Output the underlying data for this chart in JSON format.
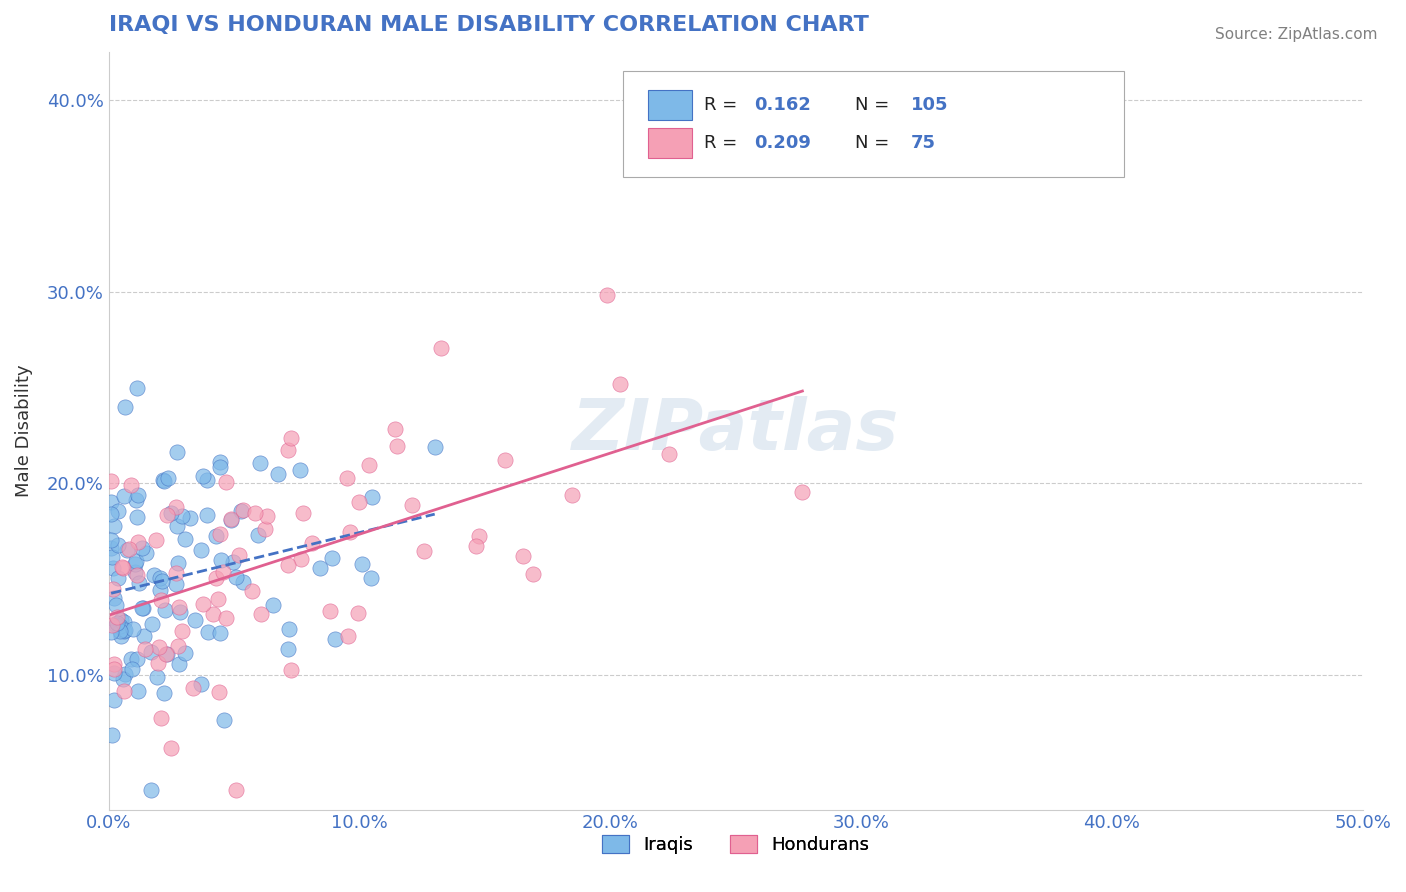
{
  "title": "IRAQI VS HONDURAN MALE DISABILITY CORRELATION CHART",
  "source": "Source: ZipAtlas.com",
  "xlabel_bottom": "",
  "ylabel": "Male Disability",
  "legend_bottom": [
    "Iraqis",
    "Hondurans"
  ],
  "iraqi_R": 0.162,
  "iraqi_N": 105,
  "honduran_R": 0.209,
  "honduran_N": 75,
  "xlim": [
    0.0,
    0.5
  ],
  "ylim": [
    0.03,
    0.42
  ],
  "xticks": [
    0.0,
    0.1,
    0.2,
    0.3,
    0.4,
    0.5
  ],
  "yticks": [
    0.1,
    0.2,
    0.3,
    0.4
  ],
  "ytick_labels": [
    "10.0%",
    "20.0%",
    "30.0%",
    "40.0%"
  ],
  "xtick_labels": [
    "0.0%",
    "10.0%",
    "20.0%",
    "30.0%",
    "40.0%",
    "50.0%"
  ],
  "iraqi_color": "#7EB9E8",
  "honduran_color": "#F5A0B5",
  "iraqi_line_color": "#4472C4",
  "honduran_line_color": "#E06090",
  "watermark_color": "#C8D8E8",
  "background_color": "#FFFFFF",
  "grid_color": "#CCCCCC",
  "title_color": "#4472C4",
  "source_color": "#808080",
  "legend_R_N_color": "#4472C4",
  "legend_label_color": "#000000"
}
